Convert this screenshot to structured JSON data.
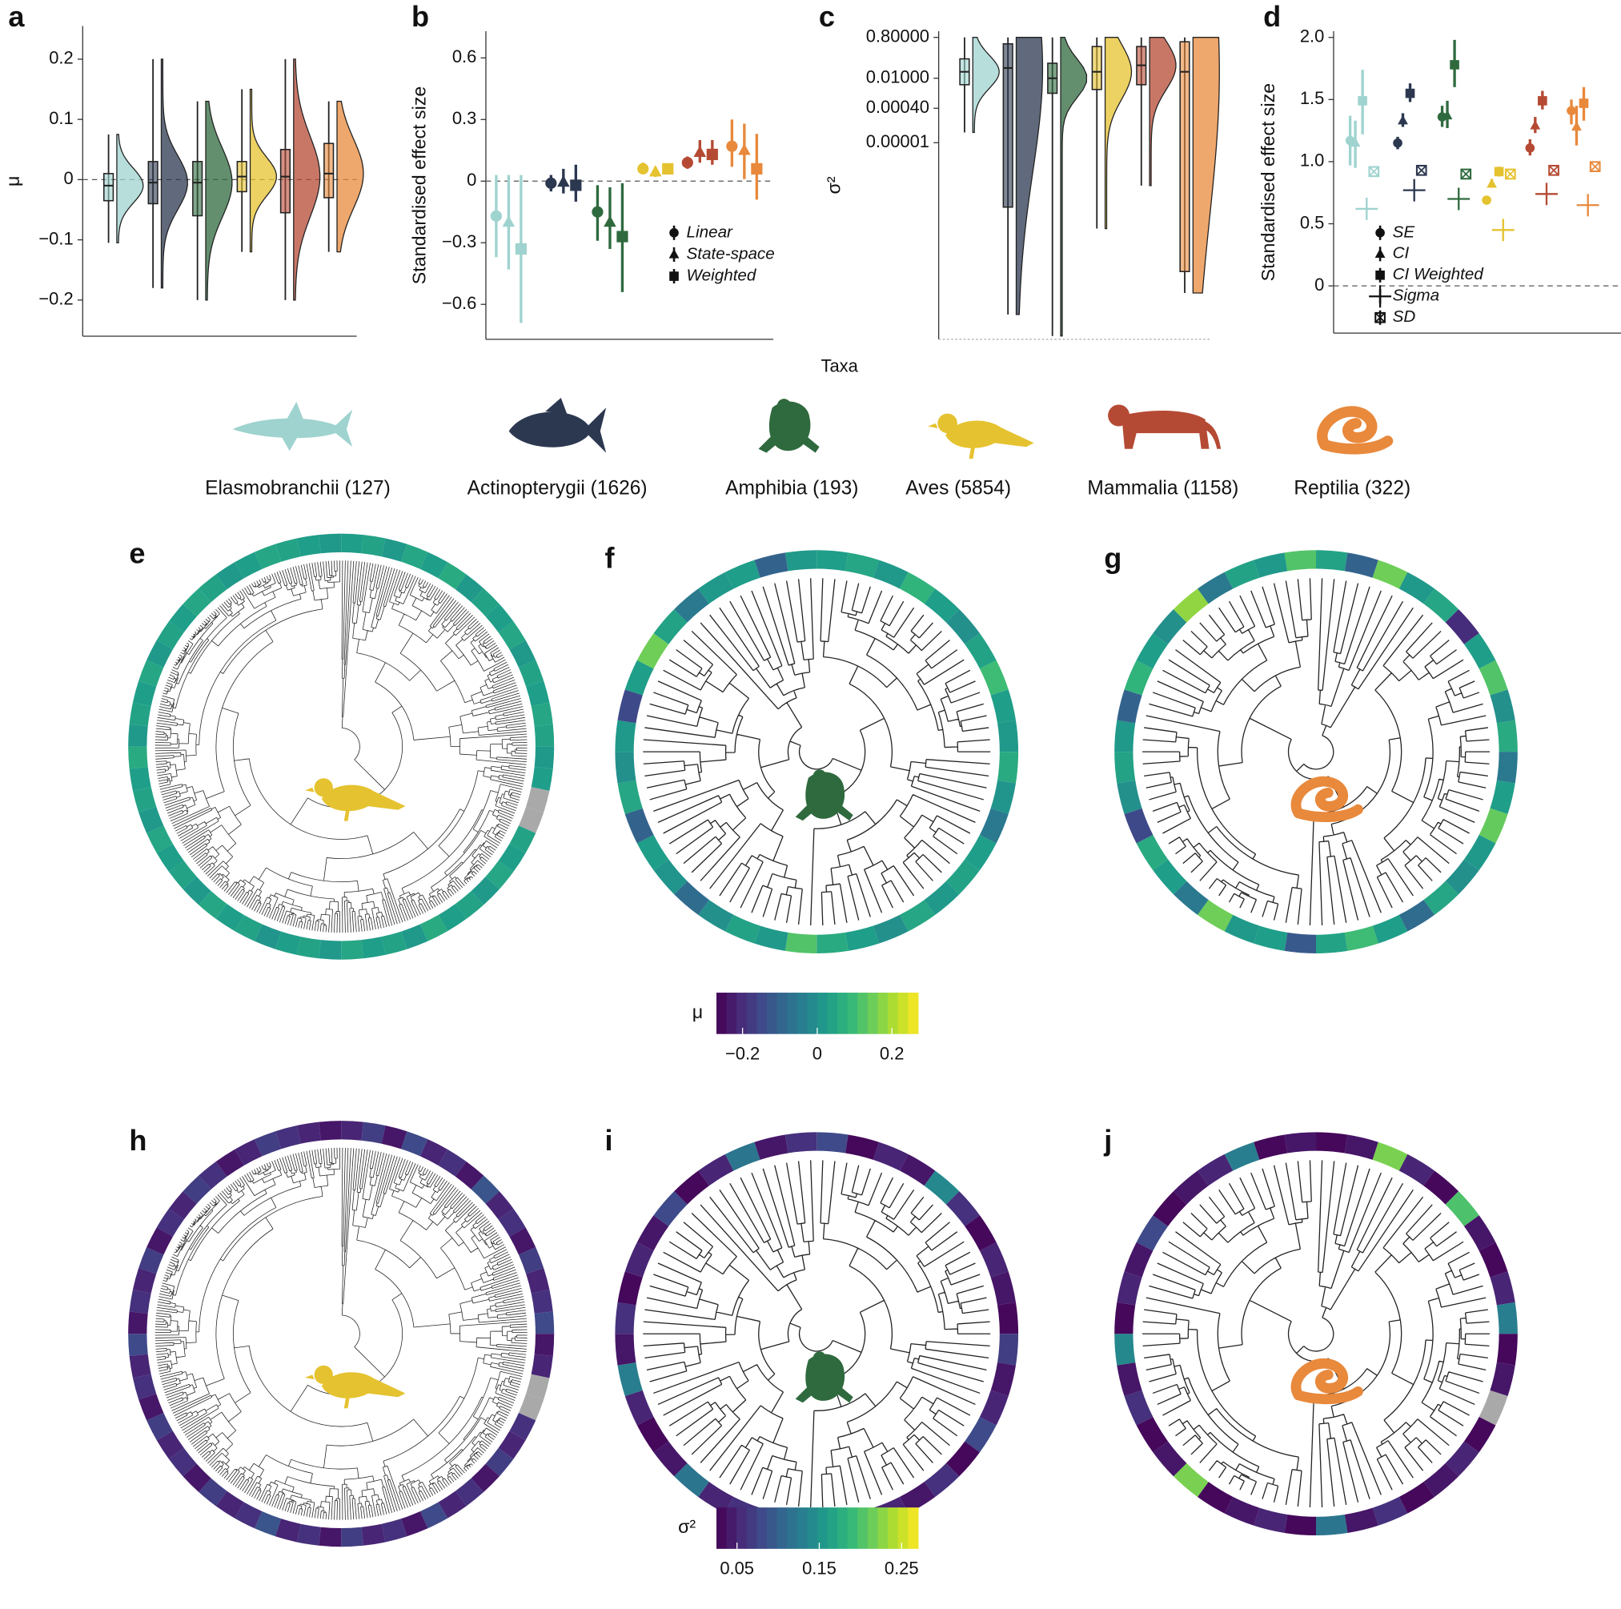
{
  "shared_xlabel": "Taxa",
  "legend": {
    "labels": [
      "Elasmobranchii (127)",
      "Actinopterygii (1626)",
      "Amphibia (193)",
      "Aves (5854)",
      "Mammalia (1158)",
      "Reptilia (322)"
    ],
    "colors": [
      "#9fd3cf",
      "#2c3850",
      "#2f6a3e",
      "#e5c22f",
      "#b54a34",
      "#e8893c"
    ]
  },
  "chart_data": [
    {
      "type": "raincloud",
      "label": "a",
      "ylabel": "μ",
      "ylim": [
        -0.26,
        0.255
      ],
      "yticks": [
        0.2,
        0.1,
        0,
        {
          "value": -0.1,
          "label": "−0.1"
        },
        {
          "value": -0.2,
          "label": "−0.2"
        }
      ],
      "reference_line": 0,
      "boxes": [
        {
          "median": -0.01,
          "q1": -0.035,
          "q3": 0.01,
          "low": -0.105,
          "high": 0.075
        },
        {
          "median": -0.005,
          "q1": -0.04,
          "q3": 0.03,
          "low": -0.18,
          "high": 0.2
        },
        {
          "median": -0.005,
          "q1": -0.06,
          "q3": 0.03,
          "low": -0.2,
          "high": 0.13
        },
        {
          "median": 0.005,
          "q1": -0.02,
          "q3": 0.03,
          "low": -0.12,
          "high": 0.15
        },
        {
          "median": 0.005,
          "q1": -0.055,
          "q3": 0.05,
          "low": -0.2,
          "high": 0.2
        },
        {
          "median": 0.01,
          "q1": -0.03,
          "q3": 0.06,
          "low": -0.12,
          "high": 0.13
        }
      ]
    },
    {
      "type": "pointrange",
      "label": "b",
      "ylabel": "Standardised effect size",
      "ylim": [
        -0.77,
        0.73
      ],
      "yticks": [
        0.6,
        0.3,
        0,
        {
          "value": -0.3,
          "label": "−0.3"
        },
        {
          "value": -0.6,
          "label": "−0.6"
        }
      ],
      "reference_line": 0,
      "series": [
        {
          "name": "Linear",
          "marker": "circle",
          "values": [
            -0.17,
            -0.01,
            -0.15,
            0.06,
            0.09,
            0.17
          ],
          "low": [
            -0.37,
            -0.05,
            -0.29,
            0.04,
            0.06,
            0.07
          ],
          "high": [
            0.03,
            0.03,
            -0.02,
            0.09,
            0.12,
            0.3
          ]
        },
        {
          "name": "State-space",
          "marker": "triangle",
          "values": [
            -0.2,
            -0.005,
            -0.2,
            0.045,
            0.14,
            0.15
          ],
          "low": [
            -0.43,
            -0.06,
            -0.33,
            0.02,
            0.09,
            0.01
          ],
          "high": [
            0.03,
            0.06,
            -0.03,
            0.07,
            0.2,
            0.28
          ]
        },
        {
          "name": "Weighted",
          "marker": "square",
          "values": [
            -0.33,
            -0.02,
            -0.27,
            0.06,
            0.13,
            0.06
          ],
          "low": [
            -0.69,
            -0.1,
            -0.54,
            0.04,
            0.08,
            -0.09
          ],
          "high": [
            0.03,
            0.08,
            -0.01,
            0.08,
            0.2,
            0.23
          ]
        }
      ]
    },
    {
      "type": "raincloud",
      "label": "c",
      "ylabel": "σ²",
      "log": true,
      "ylim": [
        7e-15,
        1.55
      ],
      "yticks": [
        {
          "value": 0.8,
          "label": "0.80000"
        },
        {
          "value": 0.01,
          "label": "0.01000"
        },
        {
          "value": 0.0004,
          "label": "0.00040"
        },
        {
          "value": 1e-05,
          "label": "0.00001"
        }
      ],
      "boxes": [
        {
          "median": 0.02,
          "q1": 0.005,
          "q3": 0.08,
          "low": 3e-05,
          "high": 0.8
        },
        {
          "median": 0.03,
          "q1": 1e-08,
          "q3": 0.4,
          "low": 1e-13,
          "high": 0.8
        },
        {
          "median": 0.01,
          "q1": 0.002,
          "q3": 0.05,
          "low": 1e-14,
          "high": 0.8
        },
        {
          "median": 0.02,
          "q1": 0.003,
          "q3": 0.3,
          "low": 1e-09,
          "high": 0.8
        },
        {
          "median": 0.04,
          "q1": 0.005,
          "q3": 0.3,
          "low": 1e-07,
          "high": 0.8
        },
        {
          "median": 0.02,
          "q1": 1e-11,
          "q3": 0.5,
          "low": 1e-12,
          "high": 0.8
        }
      ]
    },
    {
      "type": "pointrange",
      "label": "d",
      "ylabel": "Standardised effect size",
      "ylim": [
        -0.38,
        2.05
      ],
      "yticks": [
        {
          "value": 2,
          "label": "2.0"
        },
        1.5,
        {
          "value": 1,
          "label": "1.0"
        },
        0.5,
        0
      ],
      "reference_line": 0,
      "series": [
        {
          "name": "SE",
          "marker": "circle",
          "values": [
            1.17,
            1.15,
            1.36,
            0.69,
            1.11,
            1.41
          ],
          "low": [
            0.97,
            1.1,
            1.28,
            0.66,
            1.05,
            1.3
          ],
          "high": [
            1.37,
            1.2,
            1.45,
            0.72,
            1.18,
            1.5
          ]
        },
        {
          "name": "CI",
          "marker": "triangle",
          "values": [
            1.15,
            1.33,
            1.37,
            0.82,
            1.29,
            1.28
          ],
          "low": [
            0.95,
            1.28,
            1.27,
            0.79,
            1.23,
            1.13
          ],
          "high": [
            1.33,
            1.39,
            1.49,
            0.86,
            1.36,
            1.45
          ]
        },
        {
          "name": "CI Weighted",
          "marker": "square",
          "values": [
            1.49,
            1.55,
            1.78,
            0.92,
            1.49,
            1.47
          ],
          "low": [
            1.22,
            1.48,
            1.6,
            0.88,
            1.42,
            1.33
          ],
          "high": [
            1.74,
            1.63,
            1.98,
            0.96,
            1.57,
            1.6
          ]
        },
        {
          "name": "Sigma",
          "marker": "plus",
          "values": [
            0.62,
            0.77,
            0.7,
            0.45,
            0.74,
            0.65
          ]
        },
        {
          "name": "SD",
          "marker": "boxcross",
          "values": [
            0.92,
            0.93,
            0.9,
            0.9,
            0.93,
            0.96
          ]
        }
      ]
    },
    {
      "type": "tree",
      "label": "e",
      "taxon": 3,
      "clim": [
        -0.27,
        0.27
      ],
      "ring": [
        0.03,
        0.04,
        0.02,
        0.05,
        0.03,
        0.06,
        0.02,
        0.04,
        0.03,
        0.05,
        0.02,
        0.04,
        0.03,
        0.05,
        0.04,
        0.02,
        0.03,
        null,
        null,
        0.04,
        0.03,
        0.05,
        0.02,
        0.04,
        0.03,
        0.06,
        0.02,
        0.04,
        0.03,
        0.05,
        0.02,
        0.04,
        0.03,
        0.01,
        0.04,
        0.03,
        0.05,
        0.02,
        0.04,
        0.03,
        0.05,
        0.02,
        0.04,
        0.03,
        0.06,
        0.02,
        0.04,
        0.03,
        0.05,
        0.02,
        0.04,
        0.03,
        0.05,
        0.04,
        0.02,
        0.03,
        0.05,
        0.04,
        0.03,
        0.02
      ]
    },
    {
      "type": "tree",
      "label": "f",
      "taxon": 2,
      "clim": [
        -0.27,
        0.27
      ],
      "ring": [
        0.03,
        0.05,
        0.02,
        0.08,
        0.03,
        0,
        0.04,
        0.1,
        0.03,
        0.02,
        0.06,
        0.01,
        -0.05,
        0.03,
        0.04,
        0.02,
        0.05,
        0,
        0.03,
        0.06,
        0.12,
        0.02,
        0.04,
        0,
        -0.08,
        0.01,
        0.03,
        -0.1,
        0.05,
        0,
        0.02,
        -0.15,
        0.03,
        0.15,
        0.04,
        -0.05,
        0.02,
        0.03,
        -0.1,
        0.02
      ]
    },
    {
      "type": "tree",
      "label": "g",
      "taxon": 5,
      "clim": [
        -0.27,
        0.27
      ],
      "ring": [
        0.04,
        -0.1,
        0.15,
        0.02,
        0.05,
        -0.2,
        0.03,
        0.12,
        0,
        0.06,
        -0.05,
        0.03,
        0.14,
        0.02,
        0,
        0.05,
        -0.08,
        0.03,
        0.1,
        0.04,
        -0.12,
        0.03,
        0.02,
        0.15,
        -0.05,
        0.03,
        0.06,
        -0.15,
        0,
        0.04,
        0.02,
        -0.1,
        0.08,
        0.03,
        0,
        0.18,
        -0.05,
        0.04,
        0.02,
        0.12
      ]
    },
    {
      "type": "colorbar",
      "label": "μ",
      "lim": [
        -0.27,
        0.27
      ],
      "ticks": [
        {
          "value": -0.2,
          "label": "−0.2"
        },
        0,
        0.2
      ]
    },
    {
      "type": "tree",
      "label": "h",
      "taxon": 3,
      "clim": [
        0.025,
        0.27
      ],
      "ring": [
        0.05,
        0.07,
        0.04,
        0.08,
        0.05,
        0.06,
        0.04,
        0.09,
        0.05,
        0.06,
        0.04,
        0.07,
        0.05,
        0.06,
        0.08,
        0.04,
        0.05,
        null,
        null,
        0.06,
        0.05,
        0.07,
        0.04,
        0.06,
        0.05,
        0.08,
        0.04,
        0.06,
        0.05,
        0.07,
        0.04,
        0.06,
        0.05,
        0.09,
        0.06,
        0.05,
        0.07,
        0.04,
        0.06,
        0.05,
        0.07,
        0.04,
        0.06,
        0.05,
        0.08,
        0.04,
        0.06,
        0.05,
        0.07,
        0.04,
        0.06,
        0.05,
        0.07,
        0.06,
        0.04,
        0.05,
        0.07,
        0.06,
        0.05,
        0.04
      ]
    },
    {
      "type": "tree",
      "label": "i",
      "taxon": 2,
      "clim": [
        0.025,
        0.27
      ],
      "ring": [
        0.08,
        0.03,
        0.05,
        0.04,
        0.14,
        0.06,
        0.03,
        0.05,
        0.04,
        0.03,
        0.07,
        0.04,
        0.05,
        0.08,
        0.03,
        0.06,
        0.04,
        0.05,
        0.03,
        0.1,
        0.04,
        0.03,
        0.06,
        0.05,
        0.12,
        0.04,
        0.03,
        0.05,
        0.13,
        0.04,
        0.06,
        0.03,
        0.05,
        0.04,
        0.08,
        0.03,
        0.05,
        0.12,
        0.04,
        0.06
      ]
    },
    {
      "type": "tree",
      "label": "j",
      "taxon": 5,
      "clim": [
        0.025,
        0.27
      ],
      "ring": [
        0.03,
        0.04,
        0.22,
        0.05,
        0.03,
        0.2,
        0.04,
        0.03,
        0.05,
        0.13,
        0.03,
        0.04,
        null,
        0.03,
        0.05,
        0.04,
        0.03,
        0.06,
        0.04,
        0.12,
        0.03,
        0.05,
        0.04,
        0.03,
        0.22,
        0.04,
        0.03,
        0.06,
        0.04,
        0.14,
        0.03,
        0.05,
        0.04,
        0.08,
        0.03,
        0.04,
        0.05,
        0.13,
        0.03,
        0.04
      ]
    },
    {
      "type": "colorbar",
      "label": "σ²",
      "lim": [
        0.025,
        0.27
      ],
      "ticks": [
        0.05,
        0.15,
        0.25
      ]
    }
  ]
}
